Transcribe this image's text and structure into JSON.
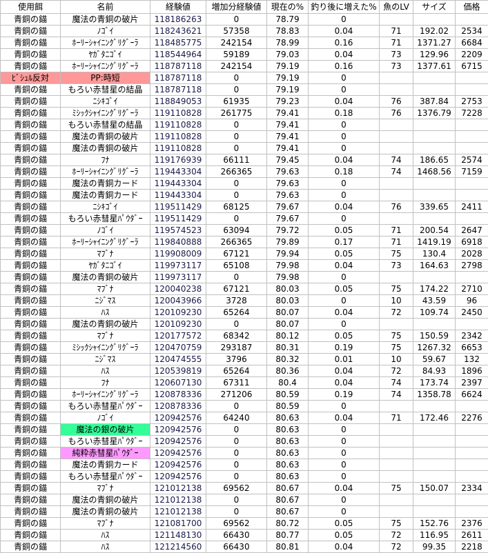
{
  "sheet": {
    "headers": [
      "使用餌",
      "名前",
      "経験値",
      "増加分経験値",
      "現在の%",
      "釣り後に増えた%",
      "魚のLV",
      "サイズ",
      "価格"
    ],
    "rows": [
      {
        "cells": [
          "青銅の錨",
          "魔法の青銅の破片",
          "118186263",
          "0",
          "78.79",
          "0",
          "",
          "",
          ""
        ]
      },
      {
        "cells": [
          "青銅の錨",
          "ﾉｺﾞｲ",
          "118243621",
          "57358",
          "78.83",
          "0.04",
          "71",
          "192.02",
          "2534"
        ]
      },
      {
        "cells": [
          "青銅の錨",
          "ﾎｰﾘｰｼｬｲﾆﾝｸﾞﾘｸﾞｰﾗ",
          "118485775",
          "242154",
          "78.99",
          "0.16",
          "71",
          "1371.27",
          "6684"
        ]
      },
      {
        "cells": [
          "青銅の錨",
          "ﾔｶﾞﾀﾆｺﾞｲ",
          "118544964",
          "59189",
          "79.03",
          "0.04",
          "73",
          "129.96",
          "2209"
        ]
      },
      {
        "cells": [
          "青銅の錨",
          "ﾎｰﾘｰｼｬｲﾆﾝｸﾞﾘｸﾞｰﾗ",
          "118787118",
          "242154",
          "79.19",
          "0.16",
          "73",
          "1377.61",
          "6715"
        ]
      },
      {
        "cells": [
          "ﾋﾞｼｭﾙ反対",
          "PP:時短",
          "118787118",
          "0",
          "79.19",
          "0",
          "",
          "",
          ""
        ],
        "highlight": "#ff9999",
        "highlight_cols": [
          0,
          1
        ]
      },
      {
        "cells": [
          "青銅の錨",
          "もろい赤彗星の結晶",
          "118787118",
          "0",
          "79.19",
          "0",
          "",
          "",
          ""
        ]
      },
      {
        "cells": [
          "青銅の錨",
          "ﾆｼｷｺﾞｲ",
          "118849053",
          "61935",
          "79.23",
          "0.04",
          "76",
          "387.84",
          "2753"
        ]
      },
      {
        "cells": [
          "青銅の錨",
          "ﾐｼｯｸｼｬｲﾆﾝｸﾞﾘｸﾞｰﾗ",
          "119110828",
          "261775",
          "79.41",
          "0.18",
          "76",
          "1376.79",
          "7228"
        ]
      },
      {
        "cells": [
          "青銅の錨",
          "もろい赤彗星の結晶",
          "119110828",
          "0",
          "79.41",
          "0",
          "",
          "",
          ""
        ]
      },
      {
        "cells": [
          "青銅の錨",
          "魔法の青銅の破片",
          "119110828",
          "0",
          "79.41",
          "0",
          "",
          "",
          ""
        ]
      },
      {
        "cells": [
          "青銅の錨",
          "魔法の青銅の破片",
          "119110828",
          "0",
          "79.41",
          "0",
          "",
          "",
          ""
        ]
      },
      {
        "cells": [
          "青銅の錨",
          "ﾌﾅ",
          "119176939",
          "66111",
          "79.45",
          "0.04",
          "74",
          "186.65",
          "2574"
        ]
      },
      {
        "cells": [
          "青銅の錨",
          "ﾎｰﾘｰｼｬｲﾆﾝｸﾞﾘｸﾞｰﾗ",
          "119443304",
          "266365",
          "79.63",
          "0.18",
          "74",
          "1468.56",
          "7159"
        ]
      },
      {
        "cells": [
          "青銅の錨",
          "魔法の青銅カード",
          "119443304",
          "0",
          "79.63",
          "0",
          "",
          "",
          ""
        ]
      },
      {
        "cells": [
          "青銅の錨",
          "魔法の青銅カード",
          "119443304",
          "0",
          "79.63",
          "0",
          "",
          "",
          ""
        ]
      },
      {
        "cells": [
          "青銅の錨",
          "ﾆｼｷｺﾞｲ",
          "119511429",
          "68125",
          "79.67",
          "0.04",
          "76",
          "339.65",
          "2411"
        ]
      },
      {
        "cells": [
          "青銅の錨",
          "もろい赤彗星ﾊﾟｳﾀﾞｰ",
          "119511429",
          "0",
          "79.67",
          "0",
          "",
          "",
          ""
        ]
      },
      {
        "cells": [
          "青銅の錨",
          "ﾉｺﾞｲ",
          "119574523",
          "63094",
          "79.72",
          "0.05",
          "71",
          "200.54",
          "2647"
        ]
      },
      {
        "cells": [
          "青銅の錨",
          "ﾎｰﾘｰｼｬｲﾆﾝｸﾞﾘｸﾞｰﾗ",
          "119840888",
          "266365",
          "79.89",
          "0.17",
          "71",
          "1419.19",
          "6918"
        ]
      },
      {
        "cells": [
          "青銅の錨",
          "ﾏﾌﾞﾅ",
          "119908009",
          "67121",
          "79.94",
          "0.05",
          "75",
          "130.4",
          "2028"
        ]
      },
      {
        "cells": [
          "青銅の錨",
          "ﾔｶﾞﾀﾆｺﾞｲ",
          "119973117",
          "65108",
          "79.98",
          "0.04",
          "73",
          "164.63",
          "2798"
        ]
      },
      {
        "cells": [
          "青銅の錨",
          "魔法の青銅の破片",
          "119973117",
          "0",
          "79.98",
          "0",
          "",
          "",
          ""
        ]
      },
      {
        "cells": [
          "青銅の錨",
          "ﾏﾌﾞﾅ",
          "120040238",
          "67121",
          "80.03",
          "0.05",
          "75",
          "174.22",
          "2710"
        ]
      },
      {
        "cells": [
          "青銅の錨",
          "ﾆｼﾞﾏｽ",
          "120043966",
          "3728",
          "80.03",
          "0",
          "10",
          "43.59",
          "96"
        ]
      },
      {
        "cells": [
          "青銅の錨",
          "ﾊｽ",
          "120109230",
          "65264",
          "80.07",
          "0.04",
          "72",
          "109.74",
          "2450"
        ]
      },
      {
        "cells": [
          "青銅の錨",
          "魔法の青銅の破片",
          "120109230",
          "0",
          "80.07",
          "0",
          "",
          "",
          ""
        ]
      },
      {
        "cells": [
          "青銅の錨",
          "ﾏﾌﾞﾅ",
          "120177572",
          "68342",
          "80.12",
          "0.05",
          "75",
          "150.59",
          "2342"
        ]
      },
      {
        "cells": [
          "青銅の錨",
          "ﾐｼｯｸｼｬｲﾆﾝｸﾞﾘｸﾞｰﾗ",
          "120470759",
          "293187",
          "80.31",
          "0.19",
          "75",
          "1267.32",
          "6653"
        ]
      },
      {
        "cells": [
          "青銅の錨",
          "ﾆｼﾞﾏｽ",
          "120474555",
          "3796",
          "80.32",
          "0.01",
          "10",
          "59.67",
          "132"
        ]
      },
      {
        "cells": [
          "青銅の錨",
          "ﾊｽ",
          "120539819",
          "65264",
          "80.36",
          "0.04",
          "72",
          "84.93",
          "1896"
        ]
      },
      {
        "cells": [
          "青銅の錨",
          "ﾌﾅ",
          "120607130",
          "67311",
          "80.4",
          "0.04",
          "74",
          "173.74",
          "2397"
        ]
      },
      {
        "cells": [
          "青銅の錨",
          "ﾎｰﾘｰｼｬｲﾆﾝｸﾞﾘｸﾞｰﾗ",
          "120878336",
          "271206",
          "80.59",
          "0.19",
          "74",
          "1358.78",
          "6624"
        ]
      },
      {
        "cells": [
          "青銅の錨",
          "もろい赤彗星ﾊﾟｳﾀﾞｰ",
          "120878336",
          "0",
          "80.59",
          "0",
          "",
          "",
          ""
        ]
      },
      {
        "cells": [
          "青銅の錨",
          "ﾉｺﾞｲ",
          "120942576",
          "64240",
          "80.63",
          "0.04",
          "71",
          "172.46",
          "2276"
        ]
      },
      {
        "cells": [
          "青銅の錨",
          "魔法の銀の破片",
          "120942576",
          "0",
          "80.63",
          "0",
          "",
          "",
          ""
        ],
        "highlight": "#33ff99",
        "highlight_cols": [
          1
        ]
      },
      {
        "cells": [
          "青銅の錨",
          "もろい赤彗星ﾊﾟｳﾀﾞｰ",
          "120942576",
          "0",
          "80.63",
          "0",
          "",
          "",
          ""
        ]
      },
      {
        "cells": [
          "青銅の錨",
          "純粋赤彗星ﾊﾟｳﾀﾞｰ",
          "120942576",
          "0",
          "80.63",
          "0",
          "",
          "",
          ""
        ],
        "highlight": "#ff99ff",
        "highlight_cols": [
          1
        ]
      },
      {
        "cells": [
          "青銅の錨",
          "魔法の青銅カード",
          "120942576",
          "0",
          "80.63",
          "0",
          "",
          "",
          ""
        ]
      },
      {
        "cells": [
          "青銅の錨",
          "もろい赤彗星ﾊﾟｳﾀﾞｰ",
          "120942576",
          "0",
          "80.63",
          "0",
          "",
          "",
          ""
        ]
      },
      {
        "cells": [
          "青銅の錨",
          "ﾏﾌﾞﾅ",
          "121012138",
          "69562",
          "80.67",
          "0.04",
          "75",
          "150.07",
          "2334"
        ]
      },
      {
        "cells": [
          "青銅の錨",
          "魔法の青銅の破片",
          "121012138",
          "0",
          "80.67",
          "0",
          "",
          "",
          ""
        ]
      },
      {
        "cells": [
          "青銅の錨",
          "魔法の青銅の破片",
          "121012138",
          "0",
          "80.67",
          "0",
          "",
          "",
          ""
        ]
      },
      {
        "cells": [
          "青銅の錨",
          "ﾏﾌﾞﾅ",
          "121081700",
          "69562",
          "80.72",
          "0.05",
          "75",
          "152.76",
          "2376"
        ]
      },
      {
        "cells": [
          "青銅の錨",
          "ﾊｽ",
          "121148130",
          "66430",
          "80.77",
          "0.05",
          "72",
          "116.95",
          "2611"
        ]
      },
      {
        "cells": [
          "青銅の錨",
          "ﾊｽ",
          "121214560",
          "66430",
          "80.81",
          "0.04",
          "72",
          "99.35",
          "2218"
        ]
      }
    ]
  }
}
